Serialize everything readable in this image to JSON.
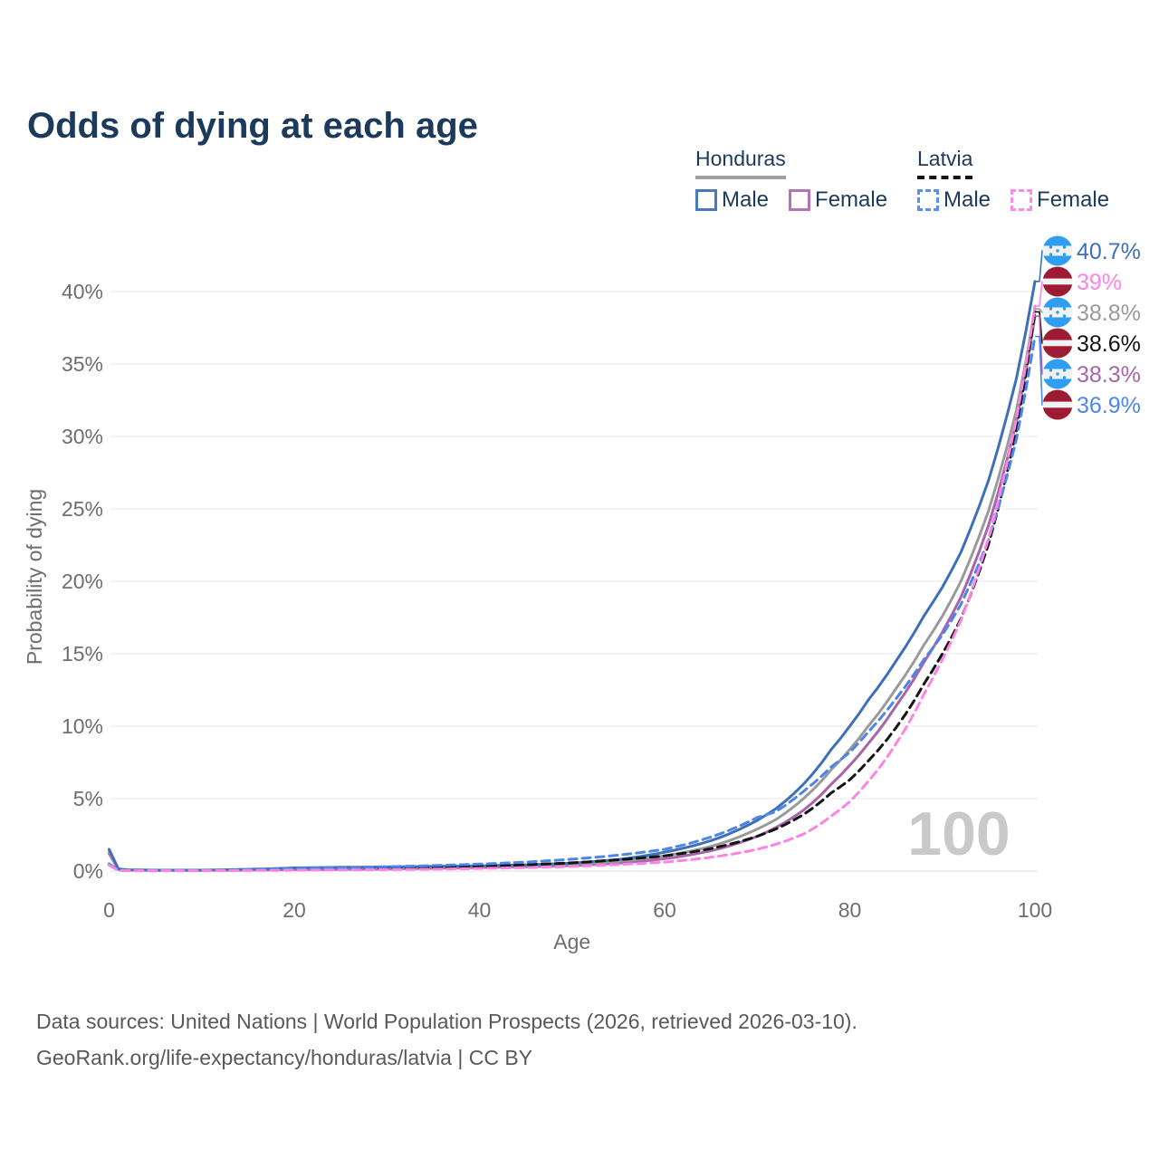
{
  "title": "Odds of dying at each age",
  "watermark": "100",
  "colors": {
    "title_navy": "#1c3a5c",
    "axis_gray": "#6e6e6e",
    "gridline": "#ededed",
    "baseline": "#e3e3e3",
    "watermark_gray": "#c9c9c9",
    "honduras_flag_blue": "#2e9df2",
    "latvia_flag_carmine": "#9d1b33",
    "flag_white": "#f2f2f2"
  },
  "legend": {
    "groups": [
      {
        "name": "Honduras",
        "line_style": "solid",
        "line_color": "#a0a0a0",
        "items": [
          {
            "label": "Male",
            "color": "#3e6fb9",
            "style": "solid"
          },
          {
            "label": "Female",
            "color": "#b06fb5",
            "style": "solid"
          }
        ]
      },
      {
        "name": "Latvia",
        "line_style": "dashed",
        "line_color": "#141414",
        "items": [
          {
            "label": "Male",
            "color": "#4d86e8",
            "style": "dashed"
          },
          {
            "label": "Female",
            "color": "#ff82e4",
            "style": "dashed"
          }
        ]
      }
    ]
  },
  "footer": {
    "line1": "Data sources: United Nations | World Population Prospects (2026, retrieved 2026-03-10).",
    "line2": "GeoRank.org/life-expectancy/honduras/latvia | CC BY"
  },
  "chart_data": {
    "type": "line",
    "title": "Odds of dying at each age",
    "xlabel": "Age",
    "ylabel": "Probability of dying",
    "xlim": [
      0,
      100
    ],
    "ylim_percent": [
      0,
      42
    ],
    "x_ticks": [
      0,
      20,
      40,
      60,
      80,
      100
    ],
    "y_ticks_percent": [
      0,
      5,
      10,
      15,
      20,
      25,
      30,
      35,
      40
    ],
    "y_tick_suffix": "%",
    "grid": "horizontal-only",
    "legend_position": "top-right",
    "x": [
      0,
      1,
      2,
      5,
      10,
      15,
      20,
      25,
      30,
      35,
      40,
      45,
      50,
      55,
      60,
      65,
      70,
      72,
      75,
      78,
      80,
      82,
      85,
      88,
      90,
      92,
      95,
      98,
      100
    ],
    "series": [
      {
        "name": "Honduras Female",
        "slug": "honduras-female",
        "color": "#a765ab",
        "dash": false,
        "flag": "honduras",
        "end_label": "38.3%",
        "label_color": "#a765ab",
        "values_percent": [
          1.2,
          0.12,
          0.07,
          0.05,
          0.05,
          0.07,
          0.1,
          0.12,
          0.15,
          0.19,
          0.24,
          0.3,
          0.38,
          0.55,
          0.85,
          1.4,
          2.4,
          3.0,
          4.2,
          6.0,
          7.3,
          8.8,
          11.4,
          14.4,
          16.5,
          18.9,
          23.9,
          31.0,
          38.3
        ]
      },
      {
        "name": "Honduras Both sexes",
        "slug": "honduras-both",
        "color": "#9a9a9a",
        "dash": false,
        "flag": "honduras",
        "end_label": "38.8%",
        "label_color": "#9a9a9a",
        "values_percent": [
          1.35,
          0.13,
          0.08,
          0.055,
          0.055,
          0.1,
          0.17,
          0.2,
          0.23,
          0.26,
          0.3,
          0.37,
          0.47,
          0.67,
          1.05,
          1.7,
          2.9,
          3.55,
          5.0,
          7.0,
          8.4,
          10.0,
          12.6,
          15.6,
          17.6,
          20.0,
          24.9,
          31.8,
          38.8
        ]
      },
      {
        "name": "Honduras Male",
        "slug": "honduras-male",
        "color": "#3e6fb9",
        "dash": false,
        "flag": "honduras",
        "end_label": "40.7%",
        "label_color": "#3e6fb9",
        "values_percent": [
          1.5,
          0.15,
          0.09,
          0.06,
          0.06,
          0.12,
          0.22,
          0.26,
          0.29,
          0.32,
          0.36,
          0.43,
          0.55,
          0.8,
          1.3,
          2.1,
          3.5,
          4.3,
          6.0,
          8.4,
          10.0,
          11.8,
          14.5,
          17.6,
          19.6,
          22.0,
          27.0,
          34.0,
          40.7
        ]
      },
      {
        "name": "Latvia Both sexes",
        "slug": "latvia-both",
        "color": "#141414",
        "dash": true,
        "flag": "latvia",
        "end_label": "38.6%",
        "label_color": "#141414",
        "values_percent": [
          0.45,
          0.05,
          0.035,
          0.028,
          0.03,
          0.07,
          0.12,
          0.16,
          0.2,
          0.26,
          0.33,
          0.43,
          0.57,
          0.78,
          1.05,
          1.55,
          2.4,
          2.9,
          3.9,
          5.4,
          6.3,
          7.6,
          9.9,
          12.9,
          15.0,
          17.4,
          22.6,
          30.4,
          38.6
        ]
      },
      {
        "name": "Latvia Male",
        "slug": "latvia-male",
        "color": "#4d86e8",
        "dash": true,
        "flag": "latvia",
        "end_label": "36.9%",
        "label_color": "#4d86e8",
        "values_percent": [
          0.5,
          0.06,
          0.045,
          0.035,
          0.04,
          0.1,
          0.18,
          0.24,
          0.3,
          0.38,
          0.48,
          0.62,
          0.82,
          1.1,
          1.5,
          2.35,
          3.7,
          4.1,
          5.5,
          7.2,
          8.2,
          9.6,
          11.9,
          14.6,
          16.3,
          18.4,
          22.9,
          29.8,
          36.9
        ]
      },
      {
        "name": "Latvia Female",
        "slug": "latvia-female",
        "color": "#ff82e4",
        "dash": true,
        "flag": "latvia",
        "end_label": "39%",
        "label_color": "#ff82e4",
        "values_percent": [
          0.4,
          0.045,
          0.03,
          0.022,
          0.025,
          0.04,
          0.06,
          0.08,
          0.1,
          0.13,
          0.18,
          0.24,
          0.32,
          0.45,
          0.62,
          0.95,
          1.5,
          1.85,
          2.55,
          3.8,
          4.8,
          6.2,
          8.8,
          12.2,
          14.6,
          17.3,
          23.0,
          31.2,
          39.0
        ]
      }
    ],
    "right_labels_order_desc": [
      "40.7%",
      "39%",
      "38.8%",
      "38.6%",
      "38.3%",
      "36.9%"
    ]
  }
}
